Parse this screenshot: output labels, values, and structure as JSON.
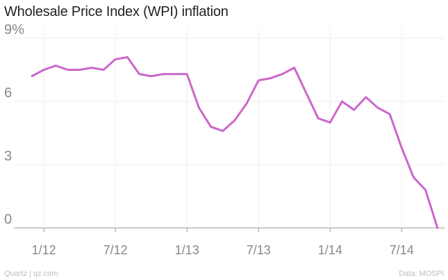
{
  "chart_data": {
    "type": "line",
    "title": "Wholesale Price Index (WPI) inflation",
    "xlabel": "",
    "ylabel": "",
    "ylim": [
      0,
      9
    ],
    "yticks": [
      {
        "value": 0,
        "label": "0"
      },
      {
        "value": 3,
        "label": "3"
      },
      {
        "value": 6,
        "label": "6"
      },
      {
        "value": 9,
        "label": "9%"
      }
    ],
    "xticks": [
      {
        "x": "2012-01",
        "label": "1/12"
      },
      {
        "x": "2012-07",
        "label": "7/12"
      },
      {
        "x": "2013-01",
        "label": "1/13"
      },
      {
        "x": "2013-07",
        "label": "7/13"
      },
      {
        "x": "2014-01",
        "label": "1/14"
      },
      {
        "x": "2014-07",
        "label": "7/14"
      }
    ],
    "grid": true,
    "series": [
      {
        "color": "#cc66cc",
        "points": [
          {
            "x": "2011-12",
            "y": 7.2
          },
          {
            "x": "2012-01",
            "y": 7.5
          },
          {
            "x": "2012-02",
            "y": 7.7
          },
          {
            "x": "2012-03",
            "y": 7.5
          },
          {
            "x": "2012-04",
            "y": 7.5
          },
          {
            "x": "2012-05",
            "y": 7.6
          },
          {
            "x": "2012-06",
            "y": 7.5
          },
          {
            "x": "2012-07",
            "y": 8.0
          },
          {
            "x": "2012-08",
            "y": 8.1
          },
          {
            "x": "2012-09",
            "y": 7.3
          },
          {
            "x": "2012-10",
            "y": 7.2
          },
          {
            "x": "2012-11",
            "y": 7.3
          },
          {
            "x": "2012-12",
            "y": 7.3
          },
          {
            "x": "2013-01",
            "y": 7.3
          },
          {
            "x": "2013-02",
            "y": 5.7
          },
          {
            "x": "2013-03",
            "y": 4.8
          },
          {
            "x": "2013-04",
            "y": 4.6
          },
          {
            "x": "2013-05",
            "y": 5.1
          },
          {
            "x": "2013-06",
            "y": 5.9
          },
          {
            "x": "2013-07",
            "y": 7.0
          },
          {
            "x": "2013-08",
            "y": 7.1
          },
          {
            "x": "2013-09",
            "y": 7.3
          },
          {
            "x": "2013-10",
            "y": 7.6
          },
          {
            "x": "2013-11",
            "y": 6.4
          },
          {
            "x": "2013-12",
            "y": 5.2
          },
          {
            "x": "2014-01",
            "y": 5.0
          },
          {
            "x": "2014-02",
            "y": 6.0
          },
          {
            "x": "2014-03",
            "y": 5.6
          },
          {
            "x": "2014-04",
            "y": 6.2
          },
          {
            "x": "2014-05",
            "y": 5.7
          },
          {
            "x": "2014-06",
            "y": 5.4
          },
          {
            "x": "2014-07",
            "y": 3.8
          },
          {
            "x": "2014-08",
            "y": 2.4
          },
          {
            "x": "2014-09",
            "y": 1.8
          },
          {
            "x": "2014-10",
            "y": 0.0
          }
        ]
      }
    ]
  },
  "footer": {
    "source_left": "Quartz | qz.com",
    "source_right": "Data: MOSPI"
  },
  "colors": {
    "line": "#cc66cc",
    "grid": "#eeeeee",
    "baseline": "#999999",
    "tick_label": "#888888"
  }
}
